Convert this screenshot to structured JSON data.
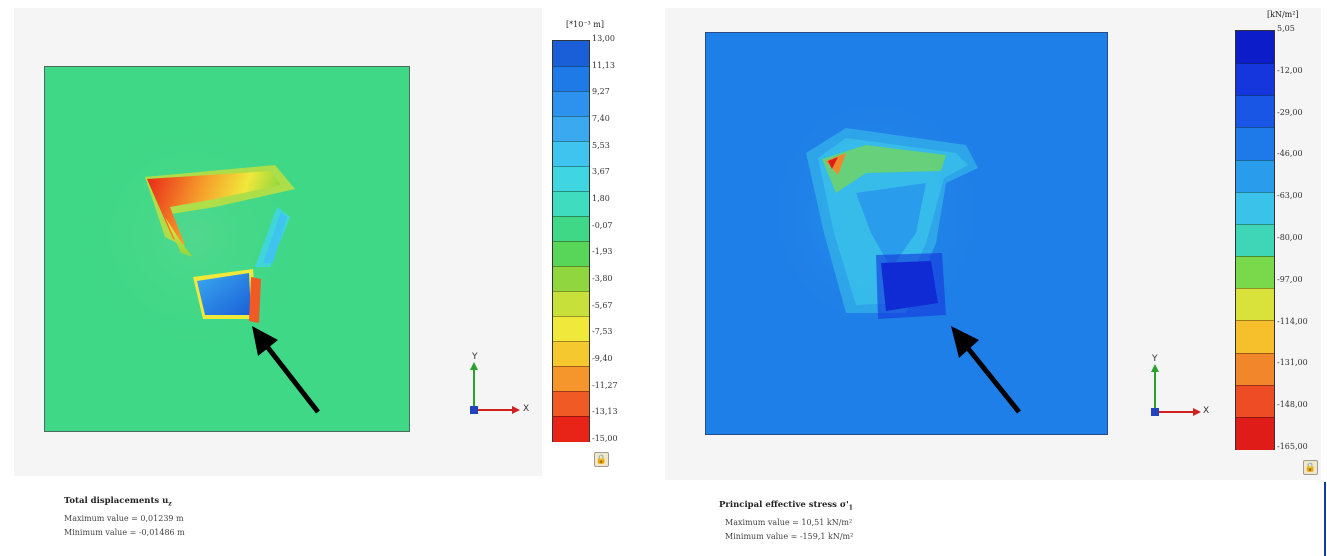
{
  "left": {
    "legend": {
      "unit": "[*10⁻³ m]",
      "ticks": [
        "13,00",
        "11,13",
        "9,27",
        "7,40",
        "5,53",
        "3,67",
        "1,80",
        "-0,07",
        "-1,93",
        "-3,80",
        "-5,67",
        "-7,53",
        "-9,40",
        "-11,27",
        "-13,13",
        "-15,00"
      ],
      "colors": [
        "#1a5fd8",
        "#1e7ae6",
        "#2c92ee",
        "#3ba9f0",
        "#3fc3ef",
        "#3fd6e2",
        "#3fdcc0",
        "#3fd887",
        "#58d65a",
        "#8fd63f",
        "#c8e03a",
        "#f0e83a",
        "#f6c830",
        "#f4962c",
        "#f05a24",
        "#e82418"
      ]
    },
    "axes": {
      "x_label": "X",
      "y_label": "Y"
    },
    "info": {
      "title": "Total displacements u",
      "title_subscript": "z",
      "max_line": "Maximum value = 0,01239 m",
      "min_line": "Minimum value = -0,01486 m"
    }
  },
  "right": {
    "legend": {
      "unit": "[kN/m²]",
      "ticks": [
        "5,05",
        "-12,00",
        "-29,00",
        "-46,00",
        "-63,00",
        "-80,00",
        "-97,00",
        "-114,00",
        "-131,00",
        "-148,00",
        "-165,00"
      ],
      "colors": [
        "#0c1cc8",
        "#1436dc",
        "#1a56e6",
        "#1e7ae8",
        "#2a9cec",
        "#3ac2ea",
        "#3fd6b8",
        "#7ad94a",
        "#d9e23a",
        "#f6bf2c",
        "#f2862a",
        "#ee4c24",
        "#e01c18"
      ]
    },
    "axes": {
      "x_label": "X",
      "y_label": "Y"
    },
    "info": {
      "title": "Principal effective stress σ'",
      "title_subscript": "1",
      "max_line": "Maximum value = 10,51 kN/m²",
      "min_line": "Minimum value = -159,1 kN/m²"
    }
  },
  "icons": {
    "lock": "lock-icon",
    "arrow": "arrow-icon"
  }
}
